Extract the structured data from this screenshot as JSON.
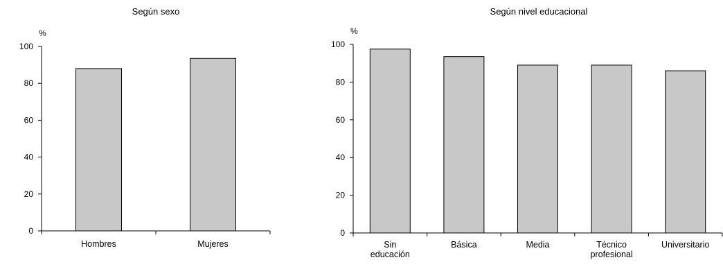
{
  "chart_data": [
    {
      "type": "bar",
      "title": "Según sexo",
      "ylabel": "%",
      "xlabel": "",
      "ylim": [
        0,
        100
      ],
      "yticks": [
        0,
        20,
        40,
        60,
        80,
        100
      ],
      "grid": false,
      "categories": [
        [
          "Hombres"
        ],
        [
          "Mujeres"
        ]
      ],
      "values": [
        88,
        93.5
      ],
      "colors": {
        "bar": "#c8c8c8",
        "stroke": "#000000"
      }
    },
    {
      "type": "bar",
      "title": "Según nivel educacional",
      "ylabel": "%",
      "xlabel": "",
      "ylim": [
        0,
        100
      ],
      "yticks": [
        0,
        20,
        40,
        60,
        80,
        100
      ],
      "grid": false,
      "categories": [
        [
          "Sin",
          "educación"
        ],
        [
          "Básica"
        ],
        [
          "Media"
        ],
        [
          "Técnico",
          "profesional"
        ],
        [
          "Universitario"
        ]
      ],
      "values": [
        97.5,
        93.5,
        89,
        89,
        86
      ],
      "colors": {
        "bar": "#c8c8c8",
        "stroke": "#000000"
      }
    }
  ]
}
